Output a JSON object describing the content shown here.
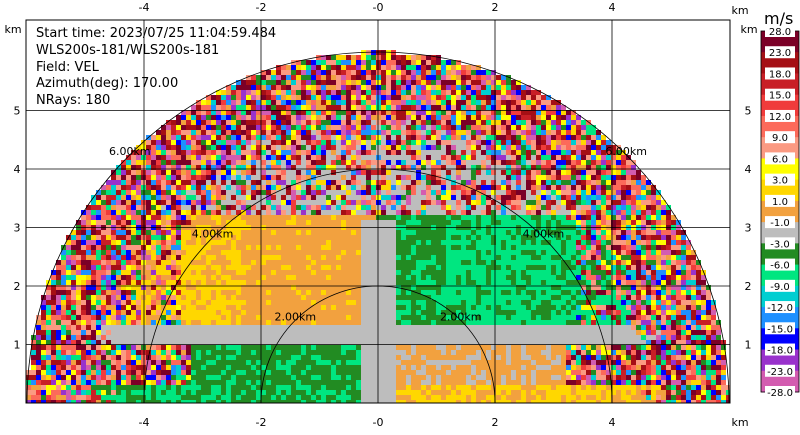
{
  "info": {
    "start_time": "Start time: 2023/07/25 11:04:59.484",
    "site": "WLS200s-181/WLS200s-181",
    "field": "Field: VEL",
    "azimuth": "Azimuth(deg): 170.00",
    "nrays": "NRays: 180"
  },
  "colorbar": {
    "unit": "m/s",
    "labels": [
      "28.0",
      "23.0",
      "18.0",
      "15.0",
      "12.0",
      "9.0",
      "6.0",
      "3.0",
      "1.0",
      "-1.0",
      "-3.0",
      "-6.0",
      "-9.0",
      "-12.0",
      "-15.0",
      "-18.0",
      "-23.0",
      "-28.0"
    ],
    "colors": [
      "#7b0027",
      "#a50f15",
      "#c81f26",
      "#f03b3b",
      "#fc6a5a",
      "#fb9a82",
      "#ffff00",
      "#ffd700",
      "#f2a13f",
      "#bdbdbd",
      "#228b22",
      "#00e680",
      "#00ced1",
      "#1e90ff",
      "#0000ff",
      "#9932cc",
      "#d35cb0"
    ]
  },
  "chart_data": {
    "type": "heatmap",
    "title": "",
    "xlabel": "km",
    "ylabel": "km",
    "xlim": [
      -6.0,
      6.0
    ],
    "ylim": [
      0,
      6.0
    ],
    "x_ticks": [
      -4,
      -2,
      0,
      2,
      4
    ],
    "y_ticks": [
      1,
      2,
      3,
      4,
      5
    ],
    "range_rings": [
      {
        "radius_km": 2.0,
        "label": "2.00km"
      },
      {
        "radius_km": 4.0,
        "label": "4.00km"
      },
      {
        "radius_km": 6.0,
        "label": "6.00km"
      }
    ],
    "max_range_km": 6.0,
    "nrays": 180,
    "field": "VEL",
    "units": "m/s"
  }
}
